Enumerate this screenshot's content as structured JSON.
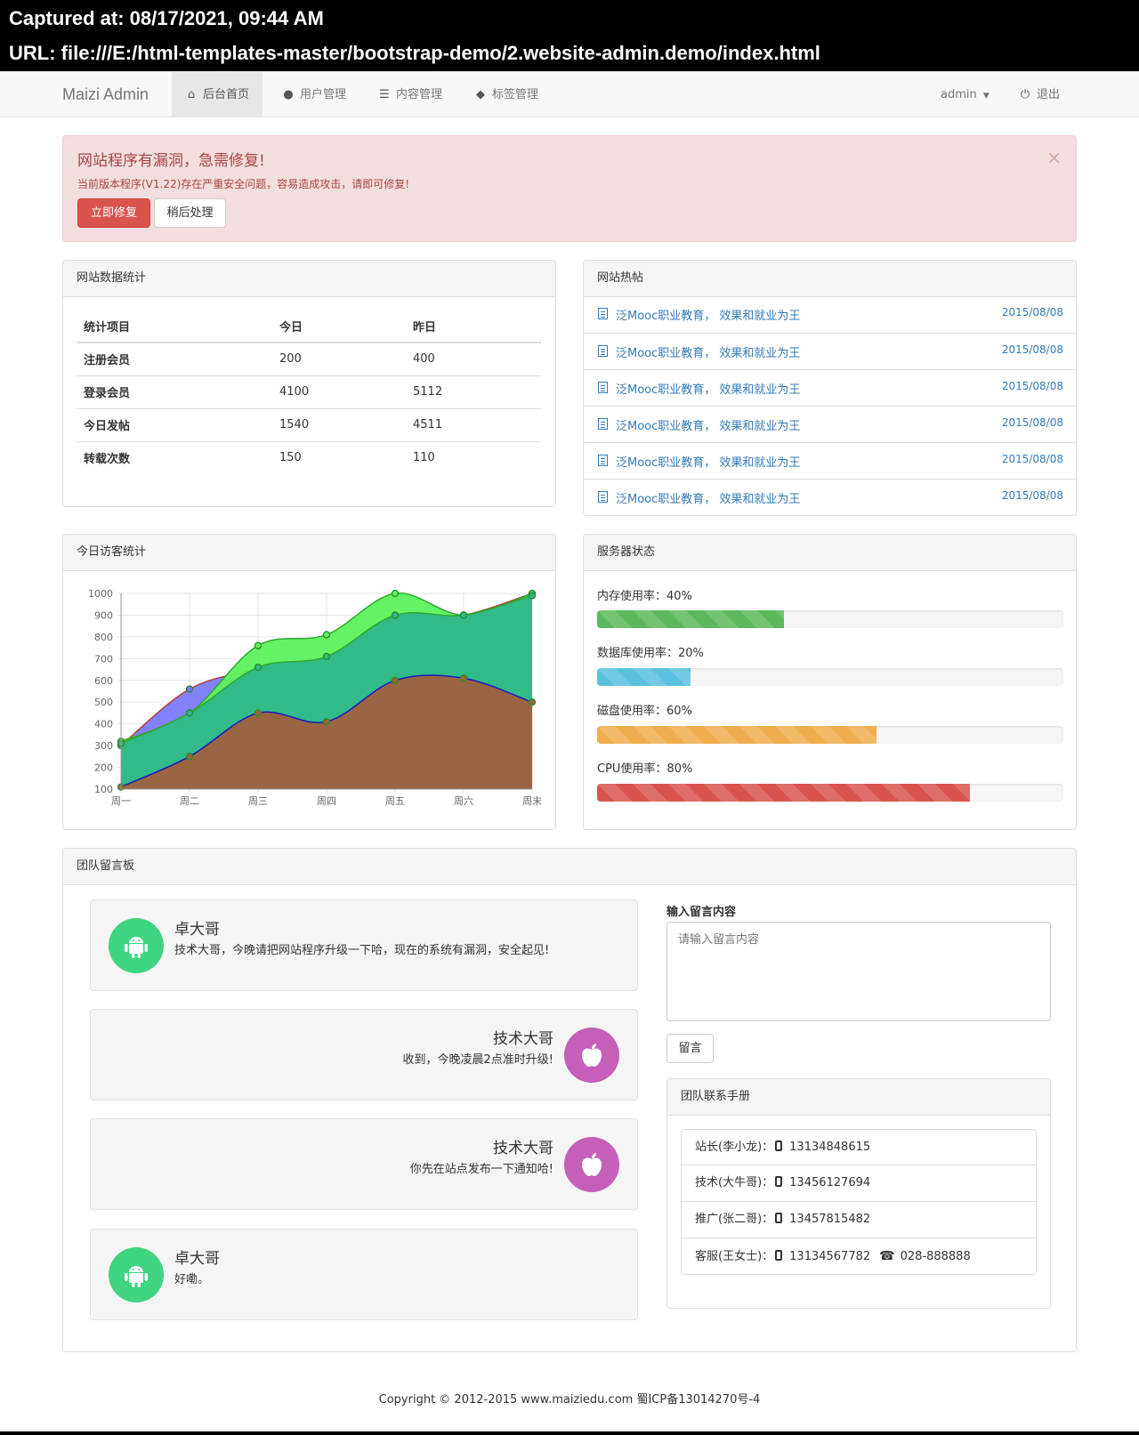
{
  "capture": {
    "captured_at": "Captured at: 08/17/2021, 09:44 AM",
    "url": "URL: file:///E:/html-templates-master/bootstrap-demo/2.website-admin.demo/index.html"
  },
  "navbar": {
    "brand": "Maizi Admin",
    "items": [
      {
        "label": "后台首页",
        "icon": "home-icon",
        "active": true
      },
      {
        "label": "用户管理",
        "icon": "user-icon",
        "active": false
      },
      {
        "label": "内容管理",
        "icon": "list-icon",
        "active": false
      },
      {
        "label": "标签管理",
        "icon": "tags-icon",
        "active": false
      }
    ],
    "user_menu": "admin",
    "logout": "退出"
  },
  "alert": {
    "title": "网站程序有漏洞，急需修复!",
    "body": "当前版本程序(V1.22)存在严重安全问题，容易造成攻击，请即可修复!",
    "fix_button": "立即修复",
    "later_button": "稍后处理",
    "close": "×"
  },
  "stats_panel": {
    "title": "网站数据统计",
    "headers": [
      "统计项目",
      "今日",
      "昨日"
    ],
    "rows": [
      [
        "注册会员",
        "200",
        "400"
      ],
      [
        "登录会员",
        "4100",
        "5112"
      ],
      [
        "今日发帖",
        "1540",
        "4511"
      ],
      [
        "转载次数",
        "150",
        "110"
      ]
    ]
  },
  "hot_posts": {
    "title": "网站热帖",
    "items": [
      {
        "title": "泛Mooc职业教育， 效果和就业为王",
        "date": "2015/08/08"
      },
      {
        "title": "泛Mooc职业教育， 效果和就业为王",
        "date": "2015/08/08"
      },
      {
        "title": "泛Mooc职业教育， 效果和就业为王",
        "date": "2015/08/08"
      },
      {
        "title": "泛Mooc职业教育， 效果和就业为王",
        "date": "2015/08/08"
      },
      {
        "title": "泛Mooc职业教育， 效果和就业为王",
        "date": "2015/08/08"
      },
      {
        "title": "泛Mooc职业教育， 效果和就业为王",
        "date": "2015/08/08"
      }
    ]
  },
  "visitors_panel": {
    "title": "今日访客统计"
  },
  "chart_data": {
    "type": "area",
    "categories": [
      "周一",
      "周二",
      "周三",
      "周四",
      "周五",
      "周六",
      "周末"
    ],
    "ylim": [
      100,
      1000
    ],
    "yticks": [
      "100",
      "200",
      "300",
      "400",
      "500",
      "600",
      "700",
      "800",
      "900",
      "1000"
    ],
    "grid": true,
    "series": [
      {
        "values": [
          300,
          560,
          650,
          710,
          890,
          900,
          1000
        ],
        "fill": "#7b7bff",
        "stroke": "#b04040"
      },
      {
        "values": [
          320,
          450,
          760,
          810,
          1000,
          900,
          1000
        ],
        "fill": "#5cf25c",
        "stroke": "#2ea82e"
      },
      {
        "values": [
          310,
          450,
          660,
          710,
          900,
          900,
          990
        ],
        "fill": "#2fb88a",
        "stroke": "#2ea82e"
      },
      {
        "values": [
          110,
          250,
          450,
          410,
          600,
          610,
          500
        ],
        "fill": "#a0603e",
        "stroke": "#1a1ac0"
      }
    ]
  },
  "server_panel": {
    "title": "服务器状态",
    "bars": [
      {
        "label": "内存使用率：40%",
        "value": 40,
        "color": "#5cb85c"
      },
      {
        "label": "数据库使用率：20%",
        "value": 20,
        "color": "#5bc0de"
      },
      {
        "label": "磁盘使用率：60%",
        "value": 60,
        "color": "#f0ad4e"
      },
      {
        "label": "CPU使用率：80%",
        "value": 80,
        "color": "#d9534f"
      }
    ]
  },
  "board": {
    "title": "团队留言板",
    "messages": [
      {
        "name": "卓大哥",
        "text": "技术大哥，今晚请把网站程序升级一下哈，现在的系统有漏洞，安全起见!",
        "side": "left",
        "icon": "android-icon"
      },
      {
        "name": "技术大哥",
        "text": "收到，今晚凌晨2点准时升级!",
        "side": "right",
        "icon": "apple-icon"
      },
      {
        "name": "技术大哥",
        "text": "你先在站点发布一下通知哈!",
        "side": "right",
        "icon": "apple-icon"
      },
      {
        "name": "卓大哥",
        "text": "好嘞。",
        "side": "left",
        "icon": "android-icon"
      }
    ],
    "input_label": "输入留言内容",
    "input_placeholder": "请输入留言内容",
    "submit": "留言",
    "contacts_title": "团队联系手册",
    "contacts": [
      {
        "role": "站长(李小龙)：",
        "mobile": "13134848615",
        "phone": ""
      },
      {
        "role": "技术(大牛哥)：",
        "mobile": "13456127694",
        "phone": ""
      },
      {
        "role": "推广(张二哥)：",
        "mobile": "13457815482",
        "phone": ""
      },
      {
        "role": "客服(王女士)：",
        "mobile": "13134567782",
        "phone": "028-888888"
      }
    ]
  },
  "footer": "Copyright © 2012-2015  www.maiziedu.com  蜀ICP备13014270号-4"
}
